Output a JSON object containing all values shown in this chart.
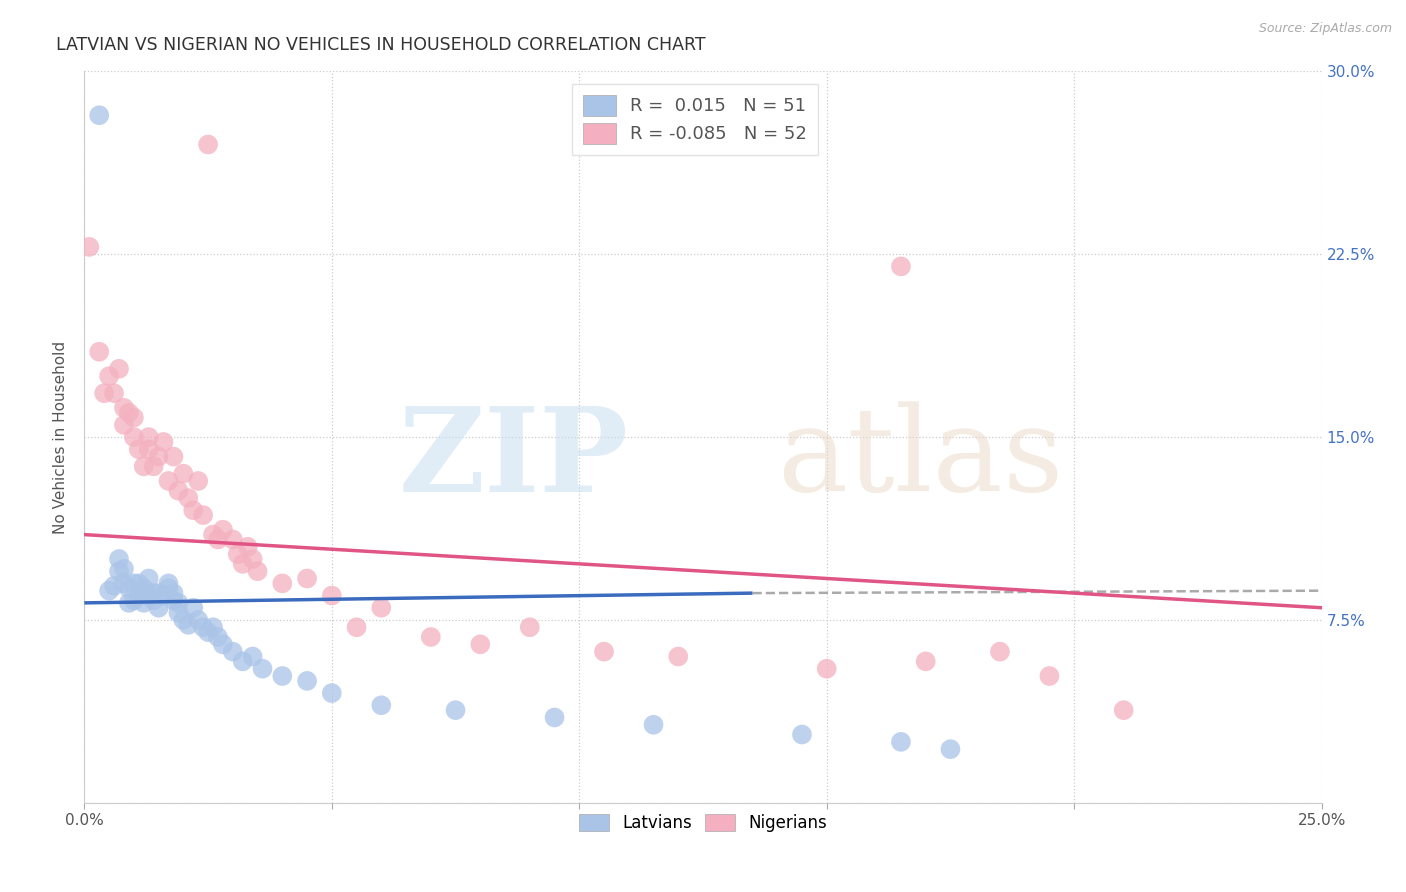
{
  "title": "LATVIAN VS NIGERIAN NO VEHICLES IN HOUSEHOLD CORRELATION CHART",
  "source": "Source: ZipAtlas.com",
  "ylabel": "No Vehicles in Household",
  "xlim": [
    0.0,
    0.25
  ],
  "ylim": [
    0.0,
    0.3
  ],
  "xticks": [
    0.0,
    0.05,
    0.1,
    0.15,
    0.2,
    0.25
  ],
  "yticks": [
    0.0,
    0.075,
    0.15,
    0.225,
    0.3
  ],
  "latvian_R": "0.015",
  "latvian_N": "51",
  "nigerian_R": "-0.085",
  "nigerian_N": "52",
  "latvian_color": "#aac4e8",
  "nigerian_color": "#f4b0c0",
  "latvian_line_color": "#3a6bbf",
  "nigerian_line_color": "#e05585",
  "latvian_line_start_y": 0.082,
  "latvian_line_end_y": 0.086,
  "nigerian_line_start_y": 0.11,
  "nigerian_line_end_y": 0.08,
  "dashed_line_start_x": 0.135,
  "dashed_line_start_y": 0.086,
  "dashed_line_end_x": 0.25,
  "dashed_line_end_y": 0.087,
  "background_color": "#ffffff",
  "latvian_points_x": [
    0.003,
    0.005,
    0.006,
    0.007,
    0.007,
    0.008,
    0.008,
    0.009,
    0.009,
    0.01,
    0.01,
    0.011,
    0.011,
    0.012,
    0.012,
    0.013,
    0.013,
    0.014,
    0.014,
    0.015,
    0.015,
    0.016,
    0.017,
    0.017,
    0.018,
    0.018,
    0.019,
    0.019,
    0.02,
    0.021,
    0.022,
    0.023,
    0.024,
    0.025,
    0.026,
    0.027,
    0.028,
    0.03,
    0.032,
    0.034,
    0.036,
    0.04,
    0.045,
    0.05,
    0.06,
    0.075,
    0.095,
    0.115,
    0.145,
    0.165,
    0.175
  ],
  "latvian_points_y": [
    0.282,
    0.087,
    0.089,
    0.1,
    0.095,
    0.09,
    0.096,
    0.082,
    0.088,
    0.083,
    0.09,
    0.085,
    0.09,
    0.082,
    0.088,
    0.085,
    0.092,
    0.083,
    0.086,
    0.08,
    0.086,
    0.085,
    0.088,
    0.09,
    0.083,
    0.086,
    0.082,
    0.078,
    0.075,
    0.073,
    0.08,
    0.075,
    0.072,
    0.07,
    0.072,
    0.068,
    0.065,
    0.062,
    0.058,
    0.06,
    0.055,
    0.052,
    0.05,
    0.045,
    0.04,
    0.038,
    0.035,
    0.032,
    0.028,
    0.025,
    0.022
  ],
  "nigerian_points_x": [
    0.001,
    0.003,
    0.004,
    0.005,
    0.006,
    0.007,
    0.008,
    0.008,
    0.009,
    0.01,
    0.01,
    0.011,
    0.012,
    0.013,
    0.013,
    0.014,
    0.015,
    0.016,
    0.017,
    0.018,
    0.019,
    0.02,
    0.021,
    0.022,
    0.023,
    0.024,
    0.025,
    0.026,
    0.027,
    0.028,
    0.03,
    0.031,
    0.032,
    0.033,
    0.034,
    0.035,
    0.04,
    0.045,
    0.05,
    0.055,
    0.06,
    0.07,
    0.08,
    0.09,
    0.105,
    0.12,
    0.15,
    0.165,
    0.17,
    0.185,
    0.195,
    0.21
  ],
  "nigerian_points_y": [
    0.228,
    0.185,
    0.168,
    0.175,
    0.168,
    0.178,
    0.162,
    0.155,
    0.16,
    0.15,
    0.158,
    0.145,
    0.138,
    0.15,
    0.145,
    0.138,
    0.142,
    0.148,
    0.132,
    0.142,
    0.128,
    0.135,
    0.125,
    0.12,
    0.132,
    0.118,
    0.27,
    0.11,
    0.108,
    0.112,
    0.108,
    0.102,
    0.098,
    0.105,
    0.1,
    0.095,
    0.09,
    0.092,
    0.085,
    0.072,
    0.08,
    0.068,
    0.065,
    0.072,
    0.062,
    0.06,
    0.055,
    0.22,
    0.058,
    0.062,
    0.052,
    0.038
  ]
}
